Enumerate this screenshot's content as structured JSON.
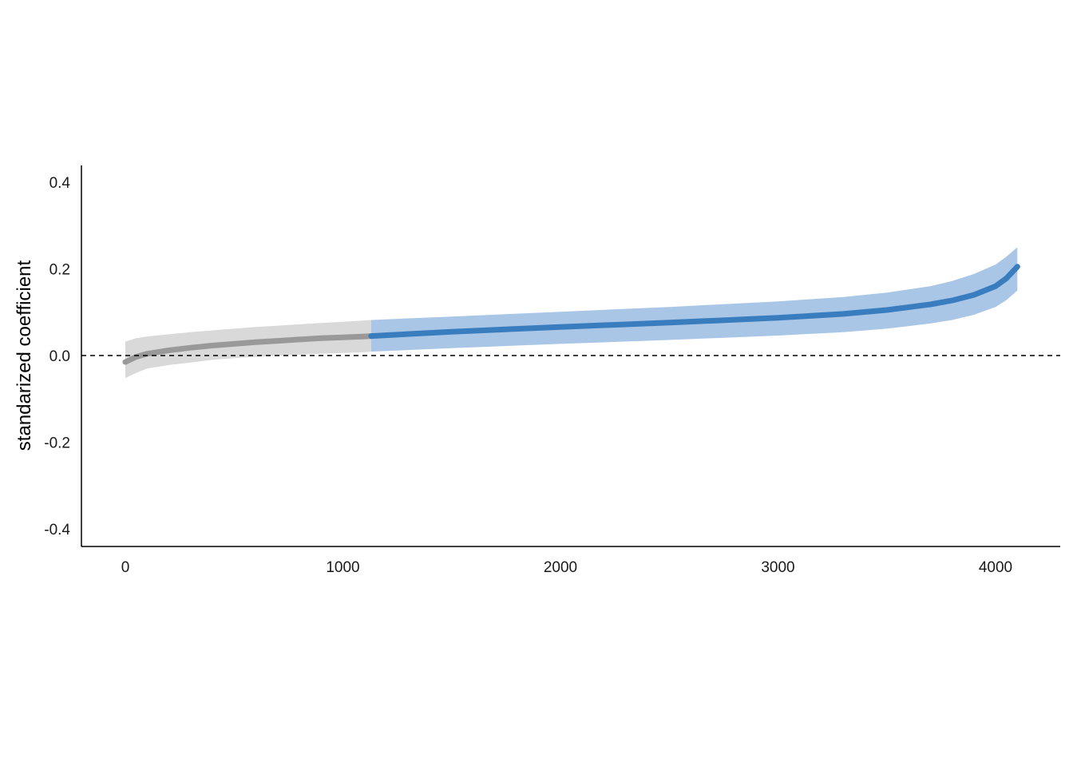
{
  "chart_data": {
    "type": "line",
    "title": "",
    "xlabel": "",
    "ylabel": "standarized coefficient",
    "xlim": [
      -200,
      4300
    ],
    "ylim": [
      -0.44,
      0.43
    ],
    "x_ticks": [
      0,
      1000,
      2000,
      3000,
      4000
    ],
    "x_tick_labels": [
      "0",
      "1000",
      "2000",
      "3000",
      "4000"
    ],
    "y_ticks": [
      0.4,
      0.2,
      0.0,
      -0.2,
      -0.4
    ],
    "y_tick_labels": [
      "0.4",
      "0.2",
      "0.0",
      "-0.2",
      "-0.4"
    ],
    "reference_line": {
      "y": 0,
      "style": "dashed",
      "color": "#000000"
    },
    "grid": false,
    "legend": "none",
    "series": [
      {
        "color": "#999999",
        "band_color": "#d9d9d9",
        "x": [
          0,
          50,
          100,
          200,
          300,
          400,
          500,
          600,
          700,
          800,
          900,
          1000,
          1100,
          1130
        ],
        "y": [
          -0.015,
          -0.003,
          0.004,
          0.012,
          0.018,
          0.023,
          0.027,
          0.031,
          0.034,
          0.037,
          0.04,
          0.042,
          0.044,
          0.045
        ],
        "lower": [
          -0.052,
          -0.04,
          -0.03,
          -0.022,
          -0.016,
          -0.01,
          -0.006,
          -0.003,
          0.0,
          0.002,
          0.004,
          0.006,
          0.008,
          0.009
        ],
        "upper": [
          0.032,
          0.04,
          0.044,
          0.049,
          0.054,
          0.058,
          0.062,
          0.066,
          0.069,
          0.072,
          0.075,
          0.078,
          0.081,
          0.082
        ]
      },
      {
        "color": "#3a7dbf",
        "band_color": "#a9c6e6",
        "x": [
          1130,
          1500,
          2000,
          2500,
          3000,
          3300,
          3500,
          3700,
          3800,
          3900,
          4000,
          4050,
          4100
        ],
        "y": [
          0.045,
          0.055,
          0.066,
          0.076,
          0.087,
          0.096,
          0.105,
          0.118,
          0.127,
          0.14,
          0.16,
          0.178,
          0.205
        ],
        "lower": [
          0.009,
          0.017,
          0.027,
          0.036,
          0.046,
          0.054,
          0.062,
          0.074,
          0.082,
          0.094,
          0.112,
          0.128,
          0.15
        ],
        "upper": [
          0.082,
          0.09,
          0.101,
          0.112,
          0.125,
          0.135,
          0.145,
          0.16,
          0.172,
          0.188,
          0.21,
          0.228,
          0.25
        ]
      }
    ]
  }
}
